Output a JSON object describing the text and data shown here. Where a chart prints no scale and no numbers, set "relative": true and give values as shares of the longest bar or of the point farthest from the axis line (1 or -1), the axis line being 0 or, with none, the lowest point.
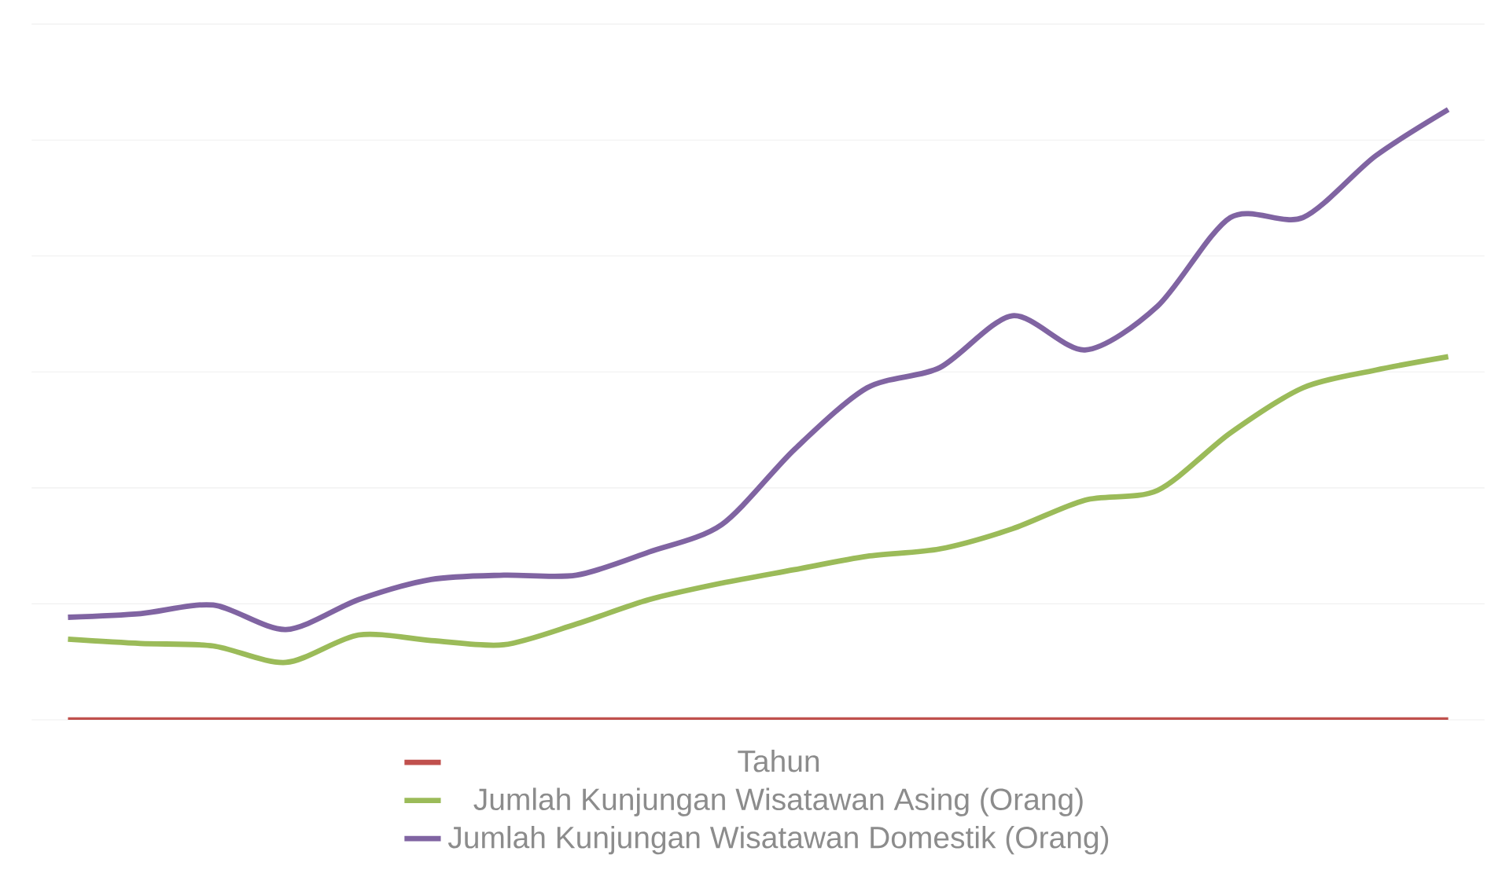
{
  "chart_data": {
    "type": "line",
    "relative": true,
    "categories": [
      null,
      null,
      null,
      null,
      null,
      null,
      null,
      null,
      null,
      null,
      null,
      null,
      null,
      null,
      null,
      null,
      null,
      null,
      null,
      null
    ],
    "series": [
      {
        "name": "Tahun",
        "color": "#c0504d",
        "values": [
          0,
          0,
          0,
          0,
          0,
          0,
          0,
          0,
          0,
          0,
          0,
          0,
          0,
          0,
          0,
          0,
          0,
          0,
          0,
          0
        ]
      },
      {
        "name": "Jumlah Kunjungan Wisatawan Asing (Orang)",
        "color": "#9bbb59",
        "values": [
          0.132,
          0.125,
          0.121,
          0.094,
          0.139,
          0.13,
          0.123,
          0.157,
          0.197,
          0.224,
          0.246,
          0.268,
          0.28,
          0.313,
          0.36,
          0.376,
          0.47,
          0.544,
          0.573,
          0.595
        ]
      },
      {
        "name": "Jumlah Kunjungan Wisatawan Domestik (Orang)",
        "color": "#8064a2",
        "values": [
          0.168,
          0.174,
          0.188,
          0.148,
          0.197,
          0.23,
          0.237,
          0.237,
          0.275,
          0.32,
          0.443,
          0.544,
          0.577,
          0.662,
          0.606,
          0.678,
          0.823,
          0.823,
          0.924,
          1
        ]
      }
    ],
    "grid": "y",
    "legend": "bottom",
    "marker": "none",
    "line_style": "solid"
  }
}
